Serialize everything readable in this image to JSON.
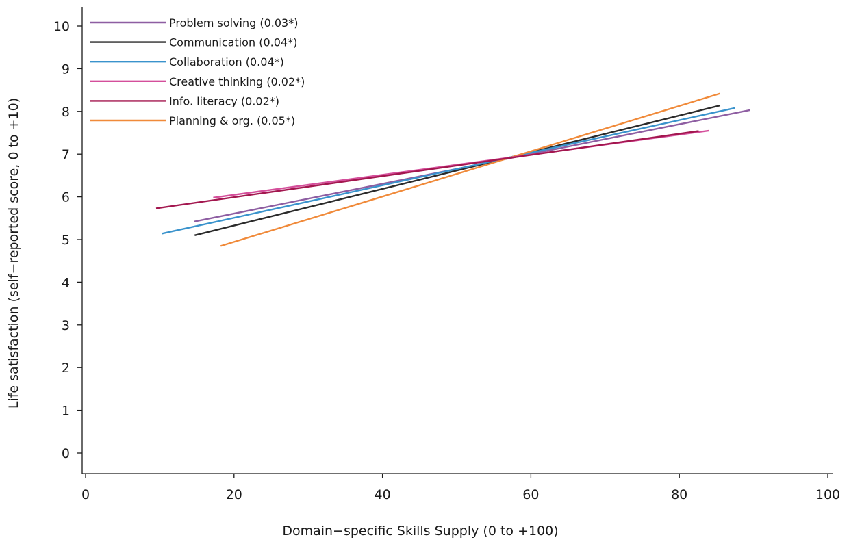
{
  "chart_data": {
    "type": "line",
    "title": "",
    "xlabel": "Domain−specific Skills Supply (0 to +100)",
    "ylabel": "Life satisfaction (self−reported score, 0 to +10)",
    "xlim": [
      0,
      100
    ],
    "ylim": [
      0,
      10
    ],
    "xticks": [
      0,
      20,
      40,
      60,
      80,
      100
    ],
    "yticks": [
      0,
      1,
      2,
      3,
      4,
      5,
      6,
      7,
      8,
      9,
      10
    ],
    "grid": false,
    "legend_position": "top-left",
    "series": [
      {
        "name": "Problem solving (0.03*)",
        "color": "#8e5ea2",
        "x": [
          14.6,
          89.5
        ],
        "y": [
          5.42,
          8.03
        ]
      },
      {
        "name": "Communication (0.04*)",
        "color": "#2b2b2b",
        "x": [
          14.7,
          85.5
        ],
        "y": [
          5.1,
          8.14
        ]
      },
      {
        "name": "Collaboration (0.04*)",
        "color": "#3a93cc",
        "x": [
          10.3,
          87.5
        ],
        "y": [
          5.14,
          8.08
        ]
      },
      {
        "name": "Creative thinking (0.02*)",
        "color": "#d44f9b",
        "x": [
          17.2,
          84.0
        ],
        "y": [
          5.98,
          7.55
        ]
      },
      {
        "name": "Info. literacy (0.02*)",
        "color": "#a3174f",
        "x": [
          9.5,
          82.6
        ],
        "y": [
          5.73,
          7.54
        ]
      },
      {
        "name": "Planning & org. (0.05*)",
        "color": "#f08a3a",
        "x": [
          18.2,
          85.5
        ],
        "y": [
          4.85,
          8.42
        ]
      }
    ]
  }
}
